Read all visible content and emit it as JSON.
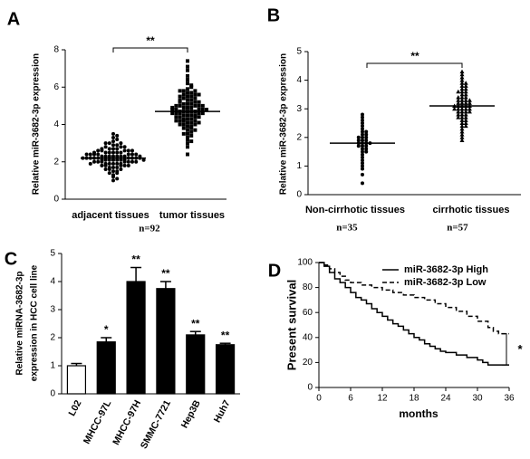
{
  "chart_data": [
    {
      "type": "dotplot",
      "panel": "A",
      "ylabel": "Relative miR-3682-3p expression",
      "categories": [
        "adjacent tissues",
        "tumor tissues"
      ],
      "values": [
        [
          1.0,
          1.2,
          1.3,
          1.4,
          1.5,
          1.5,
          1.6,
          1.6,
          1.7,
          1.7,
          1.7,
          1.8,
          1.8,
          1.8,
          1.8,
          1.9,
          1.9,
          1.9,
          1.9,
          1.9,
          2.0,
          2.0,
          2.0,
          2.0,
          2.0,
          2.0,
          2.1,
          2.1,
          2.1,
          2.1,
          2.1,
          2.1,
          2.1,
          2.2,
          2.2,
          2.2,
          2.2,
          2.2,
          2.2,
          2.2,
          2.2,
          2.3,
          2.3,
          2.3,
          2.3,
          2.3,
          2.3,
          2.3,
          2.4,
          2.4,
          2.4,
          2.4,
          2.4,
          2.4,
          2.5,
          2.5,
          2.5,
          2.5,
          2.5,
          2.6,
          2.6,
          2.6,
          2.6,
          2.7,
          2.7,
          2.7,
          2.8,
          2.8,
          2.8,
          2.9,
          2.9,
          3.0,
          3.0,
          3.1,
          3.2,
          3.3,
          3.4,
          3.5,
          1.1,
          1.4,
          1.6,
          2.0,
          2.1,
          2.2,
          2.3,
          2.4,
          2.6,
          2.7,
          1.8,
          1.9,
          2.5,
          3.0
        ],
        [
          2.4,
          2.8,
          3.0,
          3.2,
          3.3,
          3.4,
          3.5,
          3.6,
          3.7,
          3.8,
          3.8,
          3.9,
          3.9,
          4.0,
          4.0,
          4.0,
          4.1,
          4.1,
          4.2,
          4.2,
          4.2,
          4.3,
          4.3,
          4.3,
          4.4,
          4.4,
          4.4,
          4.5,
          4.5,
          4.5,
          4.5,
          4.6,
          4.6,
          4.6,
          4.6,
          4.7,
          4.7,
          4.7,
          4.7,
          4.7,
          4.8,
          4.8,
          4.8,
          4.8,
          4.9,
          4.9,
          4.9,
          5.0,
          5.0,
          5.0,
          5.0,
          5.1,
          5.1,
          5.1,
          5.2,
          5.2,
          5.2,
          5.3,
          5.3,
          5.4,
          5.4,
          5.5,
          5.5,
          5.6,
          5.6,
          5.7,
          5.7,
          5.8,
          5.8,
          5.9,
          6.0,
          6.2,
          6.4,
          6.6,
          6.9,
          7.1,
          7.4,
          3.1,
          3.5,
          4.1,
          4.4,
          4.6,
          4.8,
          5.0,
          5.3,
          5.5,
          5.8,
          6.1,
          4.2,
          4.9,
          3.7,
          5.6
        ]
      ],
      "means": [
        2.2,
        4.7
      ],
      "ylim": [
        0,
        8
      ],
      "yticks": [
        0,
        2,
        4,
        6,
        8
      ],
      "annotation": "**",
      "notes": [
        "n=92"
      ],
      "color": "#000000"
    },
    {
      "type": "dotplot",
      "panel": "B",
      "ylabel": "Relative miR-3682-3p expression",
      "categories": [
        "Non-cirrhotic tissues",
        "cirrhotic tissues"
      ],
      "values": [
        [
          0.4,
          0.7,
          0.9,
          1.0,
          1.2,
          1.3,
          1.4,
          1.5,
          1.5,
          1.6,
          1.6,
          1.7,
          1.7,
          1.7,
          1.8,
          1.8,
          1.8,
          1.8,
          1.9,
          1.9,
          1.9,
          2.0,
          2.0,
          2.0,
          2.1,
          2.1,
          2.2,
          2.2,
          2.3,
          2.4,
          2.5,
          2.6,
          2.7,
          2.8,
          1.1
        ],
        [
          1.9,
          2.0,
          2.2,
          2.3,
          2.4,
          2.5,
          2.5,
          2.6,
          2.6,
          2.7,
          2.7,
          2.8,
          2.8,
          2.8,
          2.9,
          2.9,
          2.9,
          3.0,
          3.0,
          3.0,
          3.0,
          3.1,
          3.1,
          3.1,
          3.1,
          3.2,
          3.2,
          3.2,
          3.3,
          3.3,
          3.3,
          3.4,
          3.4,
          3.5,
          3.5,
          3.6,
          3.6,
          3.7,
          3.7,
          3.8,
          3.8,
          3.9,
          4.0,
          4.1,
          4.2,
          4.3,
          2.1,
          2.4,
          2.9,
          3.2,
          3.4,
          3.6,
          3.9,
          3.0,
          2.7,
          3.1,
          3.3
        ]
      ],
      "means": [
        1.8,
        3.1
      ],
      "ylim": [
        0,
        5
      ],
      "yticks": [
        0,
        1,
        2,
        3,
        4,
        5
      ],
      "annotation": "**",
      "notes": [
        "n=35",
        "n=57"
      ],
      "color": "#000000"
    },
    {
      "type": "bar",
      "panel": "C",
      "ylabel": [
        "Relative miRNA-3682-3p",
        "expression  in HCC cell line"
      ],
      "categories": [
        "L02",
        "MHCC-97L",
        "MHCC-97H",
        "SMMC-7721",
        "Hep3B",
        "Huh7"
      ],
      "values": [
        1.0,
        1.85,
        4.0,
        3.75,
        2.1,
        1.75
      ],
      "errors": [
        0.08,
        0.15,
        0.5,
        0.25,
        0.12,
        0.05
      ],
      "colors": [
        "#ffffff",
        "#000000",
        "#000000",
        "#000000",
        "#000000",
        "#000000"
      ],
      "annotations": [
        null,
        "*",
        "**",
        "**",
        "**",
        "**"
      ],
      "ylim": [
        0,
        5
      ],
      "yticks": [
        0,
        1,
        2,
        3,
        4,
        5
      ]
    },
    {
      "type": "line",
      "panel": "D",
      "step": true,
      "ylabel": "Present survival",
      "xlabel": "months",
      "annotation": "*",
      "series": [
        {
          "name": "miR-3682-3p High",
          "color": "#000000",
          "dash": false,
          "x": [
            0,
            1,
            2,
            3,
            4,
            5,
            6,
            7,
            8,
            9,
            10,
            11,
            12,
            13,
            14,
            15,
            16,
            17,
            18,
            19,
            20,
            21,
            22,
            23,
            24,
            26,
            28,
            30,
            31,
            32,
            36
          ],
          "values": [
            100,
            97,
            92,
            87,
            84,
            80,
            76,
            72,
            70,
            67,
            63,
            60,
            57,
            54,
            51,
            49,
            46,
            43,
            40,
            38,
            35,
            33,
            31,
            29,
            28,
            26,
            24,
            22,
            20,
            18,
            18
          ]
        },
        {
          "name": "miR-3682-3p Low",
          "color": "#000000",
          "dash": true,
          "x": [
            0,
            1,
            2,
            3,
            4,
            5,
            6,
            8,
            10,
            12,
            14,
            16,
            18,
            20,
            22,
            24,
            26,
            28,
            30,
            32,
            33,
            34,
            36
          ],
          "values": [
            100,
            98,
            95,
            92,
            89,
            86,
            84,
            82,
            80,
            78,
            76,
            74,
            72,
            70,
            67,
            64,
            61,
            57,
            53,
            48,
            45,
            43,
            43
          ]
        }
      ],
      "xlim": [
        0,
        36
      ],
      "xticks": [
        0,
        6,
        12,
        18,
        24,
        30,
        36
      ],
      "ylim": [
        0,
        100
      ],
      "yticks": [
        0,
        20,
        40,
        60,
        80,
        100
      ]
    }
  ]
}
